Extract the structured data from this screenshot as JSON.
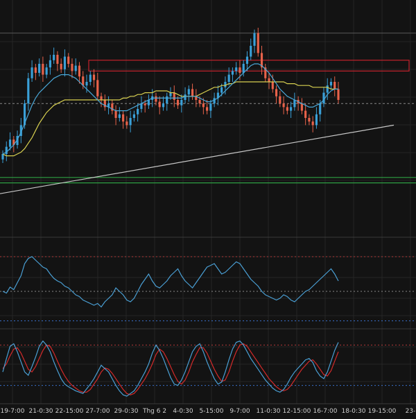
{
  "colors": {
    "background": "#131313",
    "grid": "#262626",
    "candle_up": "#3aa0d8",
    "candle_down": "#e8624a",
    "ma_fast": "#4aa8d8",
    "ma_slow": "#d8d050",
    "resistance_box": "#c4212c",
    "support_line": "#2ea043",
    "trend_line": "#c8c8c8",
    "dashed_level": "#8a8a8a",
    "rsi_line": "#4a9fd4",
    "rsi_upper": "#b33a3a",
    "rsi_lower": "#3a6fc9",
    "stoch_k": "#4a9fd4",
    "stoch_d": "#d42a2a",
    "axis_text": "#cfcfcf"
  },
  "chart_data": [
    {
      "panel": "price",
      "type": "candlestick",
      "x_labels": [
        "19-7:00",
        "21-0:30",
        "22-15:00",
        "27-7:00",
        "29-0:30",
        "Thg 6 2",
        "4-0:30",
        "5-15:00",
        "9-7:00",
        "11-0:30",
        "12-15:00",
        "16-7:00",
        "18-0:30",
        "19-15:00",
        "23-"
      ],
      "ylim": [
        0,
        100
      ],
      "close_series": [
        30,
        34,
        38,
        35,
        40,
        46,
        58,
        72,
        78,
        75,
        80,
        74,
        78,
        82,
        85,
        80,
        77,
        84,
        80,
        76,
        79,
        73,
        68,
        70,
        74,
        71,
        62,
        60,
        56,
        58,
        54,
        50,
        52,
        48,
        46,
        50,
        52,
        55,
        58,
        57,
        60,
        62,
        59,
        56,
        58,
        62,
        64,
        60,
        57,
        60,
        63,
        66,
        62,
        60,
        58,
        56,
        54,
        58,
        61,
        64,
        67,
        70,
        74,
        76,
        78,
        75,
        80,
        84,
        90,
        97,
        86,
        78,
        72,
        70,
        66,
        62,
        58,
        56,
        54,
        56,
        60,
        58,
        54,
        50,
        48,
        46,
        52,
        58,
        64,
        68,
        70,
        66,
        60
      ],
      "opens_delta": 3,
      "ma_fast": [
        30,
        31,
        33,
        35,
        38,
        42,
        47,
        52,
        57,
        61,
        64,
        66,
        68,
        70,
        72,
        73,
        74,
        74,
        74,
        73,
        72,
        70,
        68,
        66,
        64,
        62,
        60,
        58,
        57,
        56,
        55,
        54,
        54,
        54,
        54,
        55,
        56,
        57,
        58,
        59,
        60,
        61,
        61,
        61,
        61,
        61,
        61,
        61,
        61,
        61,
        62,
        62,
        62,
        62,
        61,
        60,
        59,
        59,
        60,
        61,
        63,
        65,
        67,
        69,
        71,
        73,
        75,
        77,
        79,
        80,
        80,
        79,
        77,
        75,
        72,
        69,
        66,
        64,
        62,
        61,
        60,
        59,
        58,
        57,
        56,
        56,
        57,
        58,
        60,
        63,
        65,
        66,
        66
      ],
      "ma_slow": [
        30,
        29,
        29,
        29,
        30,
        31,
        33,
        36,
        39,
        43,
        47,
        50,
        53,
        55,
        57,
        58,
        59,
        60,
        60,
        60,
        60,
        60,
        60,
        60,
        60,
        60,
        60,
        60,
        60,
        60,
        60,
        60,
        60,
        61,
        61,
        62,
        62,
        63,
        63,
        64,
        64,
        64,
        65,
        65,
        65,
        65,
        64,
        64,
        63,
        62,
        62,
        62,
        62,
        62,
        63,
        64,
        65,
        66,
        67,
        67,
        68,
        68,
        69,
        69,
        70,
        70,
        70,
        70,
        70,
        70,
        70,
        70,
        70,
        70,
        70,
        70,
        70,
        70,
        69,
        69,
        69,
        68,
        68,
        68,
        68,
        67,
        67,
        67,
        67,
        67,
        66,
        66,
        66
      ],
      "levels": {
        "resistance_box": [
          76,
          82
        ],
        "dashed_level": 58,
        "support_lines": [
          17,
          14
        ],
        "top_line": 97
      },
      "trend_line": {
        "from": [
          0,
          8
        ],
        "to": [
          92,
          46
        ]
      }
    },
    {
      "panel": "rsi",
      "type": "line",
      "ylim": [
        0,
        100
      ],
      "upper_level": 80,
      "mid_level": 40,
      "lower_level": 6,
      "values": [
        40,
        38,
        45,
        42,
        50,
        58,
        72,
        78,
        80,
        76,
        72,
        68,
        66,
        60,
        55,
        52,
        50,
        46,
        44,
        40,
        36,
        34,
        30,
        28,
        26,
        24,
        26,
        22,
        28,
        32,
        36,
        44,
        40,
        36,
        30,
        28,
        32,
        40,
        48,
        54,
        60,
        52,
        46,
        44,
        48,
        52,
        58,
        62,
        66,
        58,
        52,
        48,
        44,
        50,
        56,
        62,
        68,
        70,
        72,
        66,
        60,
        62,
        66,
        70,
        74,
        72,
        66,
        60,
        54,
        50,
        46,
        40,
        36,
        34,
        32,
        30,
        32,
        36,
        34,
        30,
        28,
        32,
        36,
        40,
        42,
        46,
        50,
        54,
        58,
        62,
        66,
        60,
        52
      ]
    },
    {
      "panel": "stochastic",
      "type": "line",
      "ylim": [
        0,
        100
      ],
      "upper_level": 80,
      "lower_level": 20,
      "k_values": [
        40,
        60,
        78,
        82,
        70,
        55,
        40,
        35,
        48,
        62,
        78,
        86,
        80,
        70,
        55,
        42,
        30,
        22,
        18,
        15,
        12,
        10,
        8,
        15,
        22,
        30,
        40,
        50,
        45,
        40,
        30,
        20,
        12,
        6,
        4,
        8,
        12,
        20,
        30,
        40,
        52,
        68,
        80,
        72,
        60,
        46,
        32,
        22,
        20,
        28,
        40,
        55,
        70,
        78,
        82,
        70,
        55,
        42,
        30,
        22,
        25,
        40,
        58,
        74,
        84,
        86,
        80,
        70,
        60,
        52,
        44,
        36,
        28,
        22,
        16,
        12,
        10,
        14,
        22,
        32,
        40,
        46,
        52,
        58,
        60,
        54,
        42,
        34,
        30,
        40,
        56,
        72,
        84
      ],
      "d_values": [
        45,
        52,
        64,
        74,
        76,
        68,
        56,
        44,
        40,
        48,
        60,
        72,
        80,
        78,
        68,
        56,
        44,
        34,
        26,
        20,
        16,
        12,
        10,
        10,
        14,
        22,
        30,
        40,
        46,
        44,
        38,
        30,
        22,
        14,
        8,
        6,
        8,
        14,
        22,
        30,
        40,
        52,
        66,
        74,
        70,
        60,
        48,
        36,
        26,
        22,
        28,
        40,
        55,
        66,
        76,
        76,
        68,
        56,
        44,
        34,
        26,
        28,
        40,
        56,
        70,
        80,
        82,
        78,
        70,
        62,
        54,
        46,
        38,
        30,
        24,
        18,
        14,
        12,
        14,
        20,
        28,
        36,
        44,
        50,
        56,
        58,
        52,
        44,
        36,
        34,
        42,
        56,
        70
      ]
    }
  ]
}
